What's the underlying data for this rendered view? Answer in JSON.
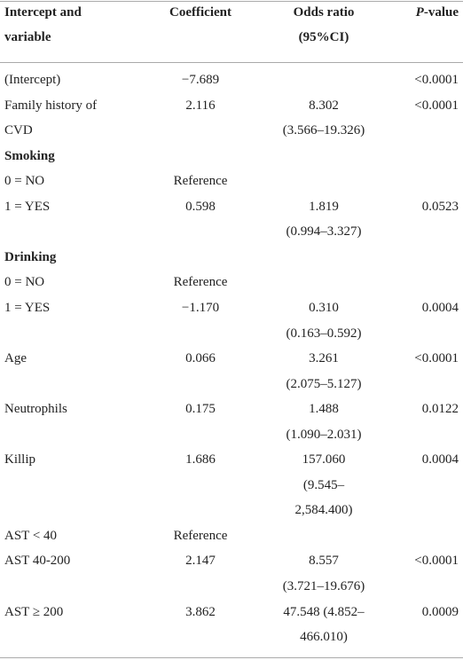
{
  "header": {
    "variable": [
      "Intercept and",
      "variable"
    ],
    "coefficient": "Coefficient",
    "odds_ratio": [
      "Odds ratio",
      "(95%CI)"
    ],
    "p_value": {
      "italic": "P",
      "text": "-value"
    }
  },
  "table": {
    "rows": [
      {
        "variable": [
          "(Intercept)"
        ],
        "coefficient": "−7.689",
        "p_value": "<0.0001"
      },
      {
        "variable": [
          "Family history of",
          "CVD"
        ],
        "coefficient": "2.116",
        "odds_ratio": [
          "8.302",
          "(3.566–19.326)"
        ],
        "p_value": "<0.0001"
      },
      {
        "section": "Smoking"
      },
      {
        "variable": [
          "0 = NO"
        ],
        "coefficient": "Reference"
      },
      {
        "variable": [
          "1 = YES"
        ],
        "coefficient": "0.598",
        "odds_ratio": [
          "1.819",
          "(0.994–3.327)"
        ],
        "p_value": "0.0523"
      },
      {
        "section": "Drinking"
      },
      {
        "variable": [
          "0 = NO"
        ],
        "coefficient": "Reference"
      },
      {
        "variable": [
          "1 = YES"
        ],
        "coefficient": "−1.170",
        "odds_ratio": [
          "0.310",
          "(0.163–0.592)"
        ],
        "p_value": "0.0004"
      },
      {
        "variable": [
          "Age"
        ],
        "coefficient": "0.066",
        "odds_ratio": [
          "3.261",
          "(2.075–5.127)"
        ],
        "p_value": "<0.0001"
      },
      {
        "variable": [
          "Neutrophils"
        ],
        "coefficient": "0.175",
        "odds_ratio": [
          "1.488",
          "(1.090–2.031)"
        ],
        "p_value": "0.0122"
      },
      {
        "variable": [
          "Killip"
        ],
        "coefficient": "1.686",
        "odds_ratio": [
          "157.060",
          "(9.545–",
          "2,584.400)"
        ],
        "p_value": "0.0004"
      },
      {
        "variable": [
          "AST < 40"
        ],
        "coefficient": "Reference"
      },
      {
        "variable": [
          "AST 40-200"
        ],
        "coefficient": "2.147",
        "odds_ratio": [
          "8.557",
          "(3.721–19.676)"
        ],
        "p_value": "<0.0001"
      },
      {
        "variable": [
          "AST ≥ 200"
        ],
        "coefficient": "3.862",
        "odds_ratio": [
          "47.548 (4.852–",
          "466.010)"
        ],
        "p_value": "0.0009"
      }
    ]
  }
}
